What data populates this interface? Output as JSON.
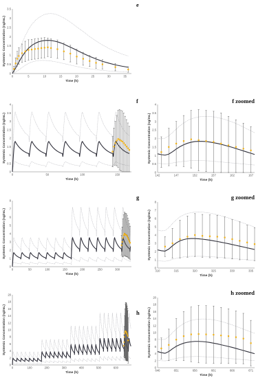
{
  "colors": {
    "model": "#2f2f3a",
    "interval": "#b0b0b6",
    "observed": "#f2b318",
    "errorbar": "#555555",
    "axis": "#777777"
  },
  "chart_data": [
    {
      "id": "e",
      "type": "line",
      "label": "e",
      "xlabel": "Time (h)",
      "ylabel": "Systemic Concentration (ng/mL)",
      "xlim": [
        0,
        37
      ],
      "ylim": [
        0,
        3.5
      ],
      "xticks": [
        0,
        5,
        10,
        15,
        20,
        25,
        30,
        35
      ],
      "yticks": [
        0,
        0.5,
        1,
        1.5,
        2,
        2.5,
        3,
        3.5
      ],
      "ytick_labels": [
        "0",
        "0.5",
        "1",
        "1.5",
        "2",
        "2.5",
        "3",
        "3.5"
      ],
      "model": {
        "x": [
          0,
          1,
          2,
          3,
          4,
          5,
          6,
          7,
          8,
          9,
          10,
          11,
          12,
          13,
          14,
          15,
          16,
          17,
          18,
          19,
          20,
          22,
          24,
          26,
          28,
          30,
          32,
          34,
          36
        ],
        "median": [
          0,
          0.3,
          0.62,
          0.92,
          1.17,
          1.37,
          1.52,
          1.63,
          1.71,
          1.76,
          1.79,
          1.8,
          1.79,
          1.76,
          1.72,
          1.66,
          1.59,
          1.51,
          1.43,
          1.35,
          1.26,
          1.09,
          0.93,
          0.79,
          0.66,
          0.56,
          0.47,
          0.4,
          0.34
        ],
        "upper": [
          0,
          0.6,
          1.15,
          1.65,
          2.05,
          2.38,
          2.65,
          2.85,
          3.01,
          3.12,
          3.2,
          3.24,
          3.25,
          3.23,
          3.18,
          3.1,
          3.01,
          2.9,
          2.78,
          2.66,
          2.53,
          2.27,
          2.01,
          1.77,
          1.55,
          1.36,
          1.2,
          1.06,
          0.95
        ],
        "lower": [
          0,
          0.08,
          0.2,
          0.33,
          0.45,
          0.55,
          0.62,
          0.67,
          0.7,
          0.71,
          0.71,
          0.7,
          0.68,
          0.65,
          0.62,
          0.58,
          0.54,
          0.5,
          0.46,
          0.42,
          0.38,
          0.31,
          0.26,
          0.21,
          0.17,
          0.14,
          0.12,
          0.1,
          0.08
        ]
      },
      "observed": {
        "x": [
          0.5,
          1,
          1.5,
          2,
          3,
          4,
          5,
          6,
          7,
          8,
          9,
          10,
          11,
          12,
          14,
          16,
          18,
          20,
          22,
          24,
          26,
          28,
          32,
          36
        ],
        "y": [
          0.25,
          0.55,
          0.8,
          0.95,
          1.1,
          1.2,
          1.28,
          1.3,
          1.33,
          1.35,
          1.38,
          1.4,
          1.42,
          1.38,
          1.32,
          1.2,
          1.08,
          0.92,
          0.8,
          0.68,
          0.58,
          0.5,
          0.35,
          0.22
        ],
        "err": [
          0.15,
          0.3,
          0.4,
          0.45,
          0.5,
          0.55,
          0.55,
          0.55,
          0.55,
          0.55,
          0.55,
          0.55,
          0.5,
          0.5,
          0.5,
          0.45,
          0.45,
          0.4,
          0.35,
          0.3,
          0.3,
          0.25,
          0.2,
          0.15
        ]
      }
    },
    {
      "id": "f",
      "type": "line",
      "label": "f",
      "xlabel": "Time (h)",
      "ylabel": "Systemic Concentration (ng/mL)",
      "xlim": [
        0,
        170
      ],
      "ylim": [
        0,
        4
      ],
      "xticks": [
        0,
        50,
        100,
        150
      ],
      "yticks": [
        0,
        0.5,
        1,
        1.5,
        2,
        2.5,
        3,
        3.5,
        4
      ],
      "ytick_labels": [
        "0",
        "0.5",
        "1",
        "1.5",
        "2",
        "2.5",
        "3",
        "3.5",
        "4"
      ],
      "dosing": {
        "interval": 24,
        "n": 7,
        "peak": 1.8,
        "trough": 0.9,
        "upper_peak": 3.55,
        "upper_trough": 1.4,
        "lower_peak": 0.6,
        "lower_trough": 0.15
      },
      "observed": {
        "x": [
          143,
          145,
          147,
          149,
          151,
          153,
          155,
          157,
          159,
          161,
          163,
          165,
          167
        ],
        "y": [
          1.2,
          1.5,
          1.7,
          1.85,
          1.95,
          1.9,
          1.85,
          1.8,
          1.7,
          1.6,
          1.5,
          1.4,
          1.3
        ],
        "err": [
          0.9,
          1.1,
          1.3,
          1.5,
          1.7,
          1.8,
          1.8,
          1.8,
          1.8,
          1.7,
          1.6,
          1.5,
          1.4
        ]
      }
    },
    {
      "id": "fz",
      "type": "line",
      "label": "f zoomed",
      "xlabel": "Time (h)",
      "ylabel": "Systemic Concentration (ng/mL)",
      "xlim": [
        142,
        168
      ],
      "ylim": [
        0,
        4
      ],
      "xticks": [
        142,
        147,
        152,
        157,
        162,
        167
      ],
      "yticks": [
        0,
        0.5,
        1,
        1.5,
        2,
        2.5,
        3,
        3.5,
        4
      ],
      "ytick_labels": [
        "0",
        "0.5",
        "1",
        "1.5",
        "2",
        "2.5",
        "3",
        "3.5",
        "4"
      ],
      "model": {
        "x": [
          142,
          143,
          144,
          145,
          146,
          147,
          148,
          149,
          150,
          151,
          152,
          153,
          154,
          155,
          156,
          157,
          158,
          159,
          160,
          161,
          162,
          163,
          164,
          165,
          166,
          167,
          168
        ],
        "median": [
          1.1,
          1.05,
          1.02,
          1.08,
          1.22,
          1.38,
          1.52,
          1.63,
          1.72,
          1.78,
          1.82,
          1.83,
          1.83,
          1.82,
          1.79,
          1.75,
          1.71,
          1.66,
          1.6,
          1.54,
          1.48,
          1.41,
          1.34,
          1.27,
          1.2,
          1.13,
          1.06
        ],
        "upper": [
          2.0,
          1.98,
          2.02,
          2.15,
          2.35,
          2.55,
          2.75,
          2.92,
          3.05,
          3.15,
          3.22,
          3.27,
          3.29,
          3.3,
          3.29,
          3.27,
          3.23,
          3.18,
          3.12,
          3.05,
          2.97,
          2.88,
          2.78,
          2.67,
          2.56,
          2.45,
          2.34
        ],
        "lower": [
          0.55,
          0.52,
          0.5,
          0.52,
          0.56,
          0.6,
          0.63,
          0.66,
          0.68,
          0.7,
          0.71,
          0.71,
          0.7,
          0.69,
          0.68,
          0.66,
          0.64,
          0.62,
          0.6,
          0.58,
          0.56,
          0.54,
          0.52,
          0.5,
          0.48,
          0.46,
          0.44
        ]
      },
      "observed": {
        "x": [
          143,
          145,
          147,
          149,
          151,
          153,
          155,
          157,
          159,
          161,
          163,
          165,
          167
        ],
        "y": [
          1.2,
          1.5,
          1.7,
          1.85,
          1.95,
          1.9,
          1.85,
          1.8,
          1.7,
          1.6,
          1.5,
          1.4,
          1.3
        ],
        "err": [
          0.9,
          1.1,
          1.3,
          1.5,
          1.7,
          1.8,
          1.8,
          1.8,
          1.8,
          1.7,
          1.6,
          1.5,
          1.4
        ]
      }
    },
    {
      "id": "g",
      "type": "line",
      "label": "g",
      "xlabel": "Time (h)",
      "ylabel": "Systemic Concentration (ng/mL)",
      "xlim": [
        0,
        340
      ],
      "ylim": [
        0,
        8
      ],
      "xticks": [
        0,
        50,
        100,
        150,
        200,
        250,
        300
      ],
      "yticks": [
        0,
        1,
        2,
        3,
        4,
        5,
        6,
        7,
        8
      ],
      "ytick_labels": [
        "0",
        "1",
        "2",
        "3",
        "4",
        "5",
        "6",
        "7",
        "8"
      ],
      "dosing": {
        "interval": 24,
        "phase1_n": 7,
        "phase2_n": 7,
        "phase2_start": 168,
        "peak1": 1.7,
        "trough1": 0.9,
        "peak2": 3.5,
        "trough2": 1.8,
        "upper_peak1": 3.5,
        "upper_peak2": 7.0,
        "lower_peak1": 0.55,
        "lower_peak2": 1.1
      },
      "observed": {
        "x": [
          312,
          314,
          316,
          318,
          320,
          322,
          324,
          326,
          328,
          330,
          332,
          334,
          336
        ],
        "y": [
          2.6,
          3.0,
          3.5,
          3.8,
          4.0,
          3.9,
          3.85,
          3.8,
          3.7,
          3.5,
          3.3,
          3.1,
          2.9
        ],
        "err": [
          1.2,
          1.8,
          2.3,
          2.5,
          2.6,
          2.6,
          2.6,
          2.6,
          2.5,
          2.4,
          2.3,
          2.1,
          2.0
        ]
      }
    },
    {
      "id": "gz",
      "type": "line",
      "label": "g zoomed",
      "xlabel": "Time (h)",
      "ylabel": "Systemic Concentration (ng/mL)",
      "xlim": [
        310,
        336
      ],
      "ylim": [
        0,
        8
      ],
      "xticks": [
        310,
        315,
        320,
        325,
        330,
        335
      ],
      "yticks": [
        0,
        1,
        2,
        3,
        4,
        5,
        6,
        7,
        8
      ],
      "ytick_labels": [
        "0",
        "1",
        "2",
        "3",
        "4",
        "5",
        "6",
        "7",
        "8"
      ],
      "model": {
        "x": [
          310,
          311,
          312,
          313,
          314,
          315,
          316,
          317,
          318,
          319,
          320,
          321,
          322,
          323,
          324,
          325,
          326,
          327,
          328,
          329,
          330,
          331,
          332,
          333,
          334,
          335,
          336
        ],
        "median": [
          2.2,
          2.1,
          2.05,
          2.3,
          2.7,
          3.05,
          3.3,
          3.45,
          3.55,
          3.58,
          3.58,
          3.55,
          3.5,
          3.44,
          3.38,
          3.3,
          3.22,
          3.13,
          3.04,
          2.95,
          2.85,
          2.75,
          2.65,
          2.55,
          2.45,
          2.35,
          2.25
        ],
        "upper": [
          4.6,
          4.5,
          4.55,
          4.9,
          5.4,
          5.85,
          6.2,
          6.45,
          6.62,
          6.72,
          6.78,
          6.8,
          6.78,
          6.73,
          6.66,
          6.57,
          6.46,
          6.34,
          6.21,
          6.07,
          5.92,
          5.77,
          5.61,
          5.45,
          5.29,
          5.13,
          4.97
        ],
        "lower": [
          0.9,
          0.85,
          0.82,
          0.9,
          1.05,
          1.18,
          1.28,
          1.35,
          1.4,
          1.42,
          1.43,
          1.43,
          1.42,
          1.4,
          1.38,
          1.35,
          1.32,
          1.28,
          1.24,
          1.2,
          1.16,
          1.12,
          1.08,
          1.04,
          1.0,
          0.96,
          0.92
        ]
      },
      "observed": {
        "x": [
          312,
          314,
          316,
          318,
          320,
          322,
          324,
          326,
          328,
          330,
          332,
          334,
          336
        ],
        "y": [
          2.6,
          3.0,
          3.5,
          3.8,
          4.0,
          3.9,
          3.85,
          3.8,
          3.7,
          3.5,
          3.3,
          3.1,
          2.9
        ],
        "err": [
          1.2,
          1.8,
          2.3,
          2.5,
          2.6,
          2.6,
          2.6,
          2.6,
          2.5,
          2.4,
          2.3,
          2.1,
          2.0
        ]
      }
    },
    {
      "id": "h",
      "type": "line",
      "label": "h",
      "xlabel": "Time (h)",
      "ylabel": "Systemic Concentration (ng/mL)",
      "xlim": [
        0,
        690
      ],
      "ylim": [
        0,
        20
      ],
      "xticks": [
        0,
        100,
        200,
        300,
        400,
        500,
        600
      ],
      "yticks": [
        0,
        2,
        4,
        6,
        8,
        10,
        12,
        14,
        16,
        18,
        20
      ],
      "ytick_labels": [
        "0",
        "2",
        "4",
        "6",
        "8",
        "10",
        "12",
        "14",
        "16",
        "18",
        "20"
      ],
      "dosing": {
        "interval": 24,
        "phase_starts": [
          0,
          168,
          336,
          504
        ],
        "phase_n": [
          7,
          7,
          7,
          6
        ],
        "peaks": [
          1.9,
          3.7,
          5.7,
          7.6
        ],
        "troughs": [
          0.9,
          1.9,
          2.9,
          3.8
        ],
        "upper_factor": 1.95,
        "lower_factor": 0.32
      },
      "observed": {
        "x": [
          647,
          649,
          651,
          653,
          655,
          657,
          659,
          661,
          663,
          665,
          667,
          669,
          671
        ],
        "y": [
          5.5,
          6.5,
          8.0,
          9.0,
          9.5,
          9.6,
          9.5,
          9.4,
          9.2,
          9.0,
          8.7,
          8.3,
          7.0
        ],
        "err": [
          3.0,
          4.5,
          6.0,
          7.0,
          7.8,
          8.2,
          8.2,
          8.2,
          8.0,
          7.8,
          7.5,
          7.2,
          6.5
        ]
      }
    },
    {
      "id": "hz",
      "type": "line",
      "label": "h zoomed",
      "xlabel": "Time (h)",
      "ylabel": "Systemic Concentration (ng/mL)",
      "xlim": [
        646,
        672
      ],
      "ylim": [
        0,
        20
      ],
      "xticks": [
        646,
        651,
        656,
        661,
        666,
        671
      ],
      "yticks": [
        0,
        2,
        4,
        6,
        8,
        10,
        12,
        14,
        16,
        18,
        20
      ],
      "ytick_labels": [
        "0",
        "2",
        "4",
        "6",
        "8",
        "10",
        "12",
        "14",
        "16",
        "18",
        "20"
      ],
      "model": {
        "x": [
          646,
          647,
          648,
          649,
          650,
          651,
          652,
          653,
          654,
          655,
          656,
          657,
          658,
          659,
          660,
          661,
          662,
          663,
          664,
          665,
          666,
          667,
          668,
          669,
          670,
          671,
          672
        ],
        "median": [
          4.6,
          4.3,
          4.1,
          4.6,
          5.4,
          6.1,
          6.6,
          7.0,
          7.25,
          7.4,
          7.5,
          7.5,
          7.45,
          7.35,
          7.2,
          7.0,
          6.8,
          6.55,
          6.3,
          6.05,
          5.8,
          5.5,
          5.2,
          4.9,
          4.6,
          4.3,
          4.0
        ],
        "upper": [
          8.2,
          8.0,
          8.1,
          8.9,
          10.0,
          11.0,
          11.9,
          12.6,
          13.1,
          13.5,
          13.7,
          13.85,
          13.9,
          13.88,
          13.8,
          13.65,
          13.45,
          13.2,
          12.9,
          12.55,
          12.2,
          11.8,
          11.4,
          11.0,
          10.6,
          10.2,
          9.8
        ],
        "lower": [
          2.1,
          2.0,
          1.95,
          2.1,
          2.4,
          2.65,
          2.85,
          3.0,
          3.1,
          3.15,
          3.18,
          3.18,
          3.15,
          3.1,
          3.05,
          2.98,
          2.9,
          2.82,
          2.74,
          2.65,
          2.56,
          2.47,
          2.38,
          2.29,
          2.2,
          2.11,
          2.02
        ]
      },
      "observed": {
        "x": [
          647,
          649,
          651,
          653,
          655,
          657,
          659,
          661,
          663,
          665,
          667,
          669,
          671
        ],
        "y": [
          5.5,
          6.5,
          8.0,
          9.0,
          9.5,
          9.6,
          9.5,
          9.4,
          9.2,
          9.0,
          8.7,
          8.3,
          7.0
        ],
        "err": [
          3.0,
          4.5,
          6.0,
          7.0,
          7.8,
          8.2,
          8.2,
          8.2,
          8.0,
          7.8,
          7.5,
          7.2,
          6.5
        ]
      }
    }
  ]
}
